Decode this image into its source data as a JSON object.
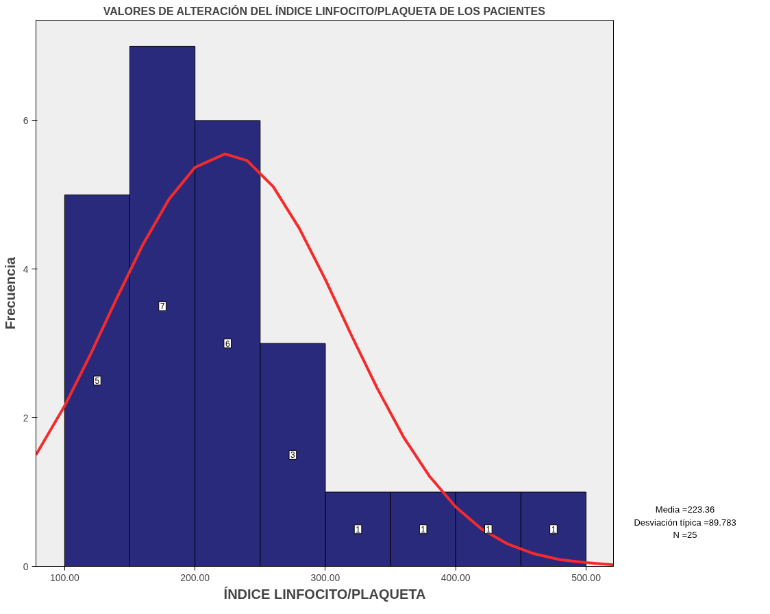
{
  "chart_data": {
    "type": "histogram",
    "title": "VALORES DE ALTERACIÓN DEL ÍNDICE LINFOCITO/PLAQUETA DE LOS PACIENTES",
    "xlabel": "ÍNDICE LINFOCITO/PLAQUETA",
    "ylabel": "Frecuencia",
    "bins": [
      100,
      150,
      200,
      250,
      300,
      350,
      400,
      450,
      500
    ],
    "values": [
      5,
      7,
      6,
      3,
      1,
      1,
      1,
      1
    ],
    "color": "#2a2a7c",
    "value_labels": [
      "5",
      "7",
      "6",
      "3",
      "1",
      "1",
      "1",
      "1"
    ],
    "series": [
      {
        "type": "line",
        "color": "#f52a2a",
        "x": [
          78,
          100,
          120,
          140,
          160,
          180,
          200,
          223,
          240,
          260,
          280,
          300,
          320,
          340,
          360,
          380,
          400,
          420,
          440,
          460,
          480,
          500,
          521
        ],
        "values": [
          1.5,
          2.16,
          2.86,
          3.61,
          4.33,
          4.94,
          5.37,
          5.55,
          5.46,
          5.11,
          4.55,
          3.86,
          3.11,
          2.39,
          1.74,
          1.21,
          0.8,
          0.5,
          0.3,
          0.17,
          0.09,
          0.05,
          0.02
        ]
      }
    ],
    "xlim": [
      78,
      521
    ],
    "ylim": [
      0,
      7.35
    ],
    "xticks": [
      {
        "value": 100,
        "label": "100.00"
      },
      {
        "value": 200,
        "label": "200.00"
      },
      {
        "value": 300,
        "label": "300.00"
      },
      {
        "value": 400,
        "label": "400.00"
      },
      {
        "value": 500,
        "label": "500.00"
      }
    ],
    "yticks": [
      0,
      2,
      4,
      6
    ],
    "grid": false,
    "annotations": [
      "Media =223.36",
      "Desviación típica =89.783",
      "N =25"
    ]
  }
}
